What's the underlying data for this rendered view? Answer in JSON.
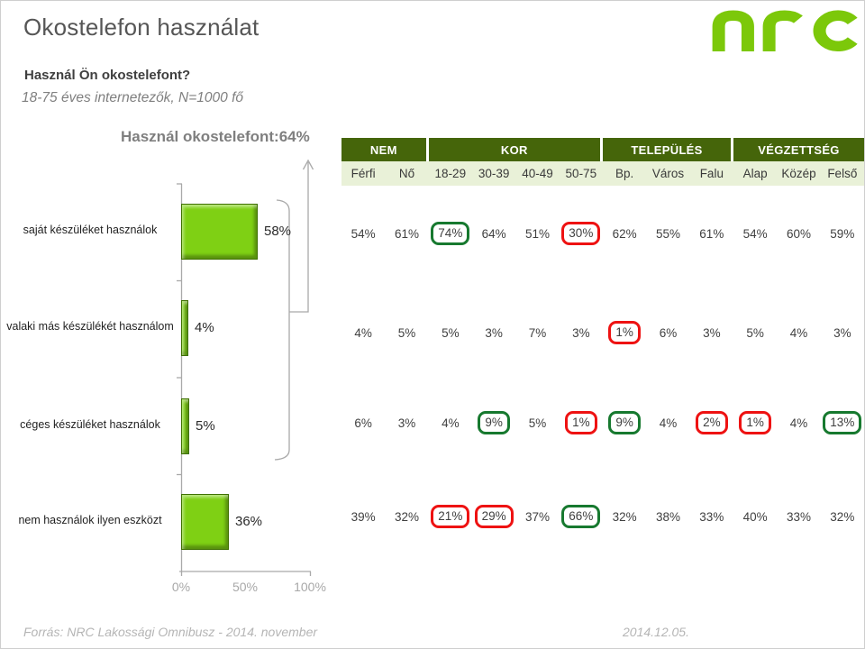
{
  "page": {
    "title": "Okostelefon használat",
    "question": "Használ Ön okostelefont?",
    "sample_note": "18-75 éves internetezők, N=1000 fő",
    "footer_left": "Forrás: NRC Lakossági Omnibusz - 2014. november",
    "footer_right": "2014.12.05.",
    "logo_name": "nrc-logo"
  },
  "colors": {
    "brand_green": "#7cc80a",
    "bar_green": "#7fd014",
    "table_header_dark_green": "#45650a",
    "table_header_light_green": "#e9f1d8",
    "highlight_green": "#17792f",
    "highlight_red": "#ee1212",
    "axis_gray": "#a9a9a9"
  },
  "chart_data": [
    {
      "type": "bar",
      "orientation": "horizontal",
      "title": "Használ okostelefont:64%",
      "categories": [
        "saját készüléket használok",
        "valaki más készülékét használom",
        "céges készüléket használok",
        "nem használok ilyen eszközt"
      ],
      "values": [
        58,
        4,
        5,
        36
      ],
      "value_labels": [
        "58%",
        "4%",
        "5%",
        "36%"
      ],
      "xlim": [
        0,
        100
      ],
      "x_tick_labels": [
        "0%",
        "50%",
        "100%"
      ],
      "grid": false,
      "legend": false,
      "annotation": {
        "bracket_spans_first_n_categories": 3,
        "arrow_points_to_title_value": "64%"
      }
    },
    {
      "type": "table",
      "column_groups": [
        {
          "label": "NEM",
          "span": 2
        },
        {
          "label": "KOR",
          "span": 4
        },
        {
          "label": "TELEPÜLÉS",
          "span": 3
        },
        {
          "label": "VÉGZETTSÉG",
          "span": 3
        }
      ],
      "columns": [
        "Férfi",
        "Nő",
        "18-29",
        "30-39",
        "40-49",
        "50-75",
        "Bp.",
        "Város",
        "Falu",
        "Alap",
        "Közép",
        "Felső"
      ],
      "rows": [
        {
          "label": "saját készüléket használok",
          "values": [
            "54%",
            "61%",
            "74%",
            "64%",
            "51%",
            "30%",
            "62%",
            "55%",
            "61%",
            "54%",
            "60%",
            "59%"
          ],
          "marks": [
            "",
            "",
            "green",
            "",
            "",
            "red",
            "",
            "",
            "",
            "",
            "",
            ""
          ]
        },
        {
          "label": "valaki más készülékét használom",
          "values": [
            "4%",
            "5%",
            "5%",
            "3%",
            "7%",
            "3%",
            "1%",
            "6%",
            "3%",
            "5%",
            "4%",
            "3%"
          ],
          "marks": [
            "",
            "",
            "",
            "",
            "",
            "",
            "red",
            "",
            "",
            "",
            "",
            ""
          ]
        },
        {
          "label": "céges készüléket használok",
          "values": [
            "6%",
            "3%",
            "4%",
            "9%",
            "5%",
            "1%",
            "9%",
            "4%",
            "2%",
            "1%",
            "4%",
            "13%"
          ],
          "marks": [
            "",
            "",
            "",
            "green",
            "",
            "red",
            "green",
            "",
            "red",
            "red",
            "",
            "green"
          ]
        },
        {
          "label": "nem használok ilyen eszközt",
          "values": [
            "39%",
            "32%",
            "21%",
            "29%",
            "37%",
            "66%",
            "32%",
            "38%",
            "33%",
            "40%",
            "33%",
            "32%"
          ],
          "marks": [
            "",
            "",
            "red",
            "red",
            "",
            "green",
            "",
            "",
            "",
            "",
            "",
            ""
          ]
        }
      ]
    }
  ]
}
